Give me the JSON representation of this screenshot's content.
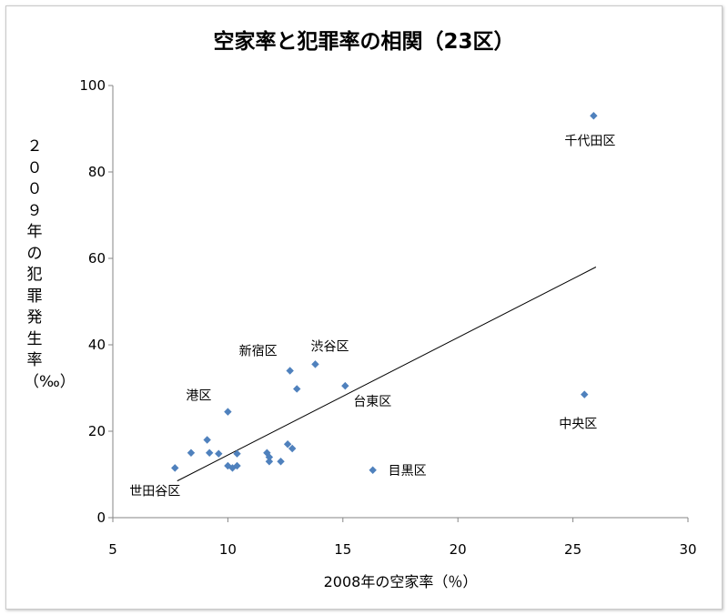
{
  "chart_data": {
    "type": "scatter",
    "title": "空家率と犯罪率の相関（23区）",
    "xlabel": "2008年の空家率（％）",
    "ylabel": "２００９年の犯罪発生率（‰）",
    "xlim": [
      5,
      30
    ],
    "ylim": [
      0,
      100
    ],
    "xticks": [
      5,
      10,
      15,
      20,
      25,
      30
    ],
    "yticks": [
      0,
      20,
      40,
      60,
      80,
      100
    ],
    "grid": false,
    "legend": "none",
    "marker_color": "#4f81bd",
    "trendline": {
      "x1": 7.8,
      "y1": 8.5,
      "x2": 26.0,
      "y2": 58.0
    },
    "points": [
      {
        "x": 25.9,
        "y": 93.0,
        "label": "千代田区"
      },
      {
        "x": 25.5,
        "y": 28.5,
        "label": "中央区"
      },
      {
        "x": 13.8,
        "y": 35.5,
        "label": "渋谷区"
      },
      {
        "x": 12.7,
        "y": 34.0,
        "label": "新宿区"
      },
      {
        "x": 15.1,
        "y": 30.5,
        "label": "台東区"
      },
      {
        "x": 10.0,
        "y": 24.5,
        "label": "港区"
      },
      {
        "x": 16.3,
        "y": 11.0,
        "label": "目黒区"
      },
      {
        "x": 7.7,
        "y": 11.5,
        "label": "世田谷区"
      },
      {
        "x": 13.0,
        "y": 29.8,
        "label": ""
      },
      {
        "x": 9.1,
        "y": 18.0,
        "label": ""
      },
      {
        "x": 8.4,
        "y": 15.0,
        "label": ""
      },
      {
        "x": 9.2,
        "y": 15.0,
        "label": ""
      },
      {
        "x": 9.6,
        "y": 14.8,
        "label": ""
      },
      {
        "x": 10.0,
        "y": 12.0,
        "label": ""
      },
      {
        "x": 10.2,
        "y": 11.5,
        "label": ""
      },
      {
        "x": 10.4,
        "y": 12.0,
        "label": ""
      },
      {
        "x": 10.4,
        "y": 14.8,
        "label": ""
      },
      {
        "x": 11.7,
        "y": 15.0,
        "label": ""
      },
      {
        "x": 11.8,
        "y": 14.0,
        "label": ""
      },
      {
        "x": 11.8,
        "y": 13.0,
        "label": ""
      },
      {
        "x": 12.3,
        "y": 13.0,
        "label": ""
      },
      {
        "x": 12.6,
        "y": 17.0,
        "label": ""
      },
      {
        "x": 12.8,
        "y": 16.0,
        "label": ""
      }
    ]
  }
}
